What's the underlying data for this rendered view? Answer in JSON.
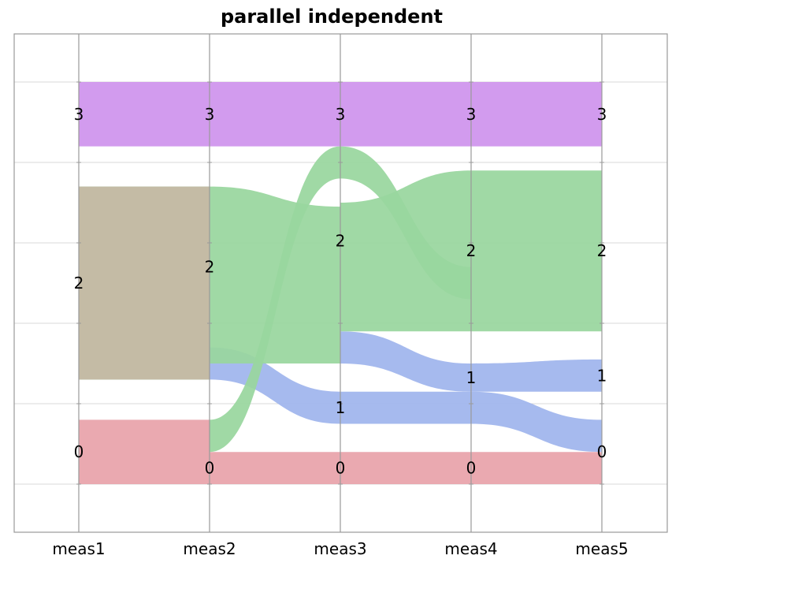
{
  "chart_data": {
    "type": "parallel-sets",
    "title": "parallel independent",
    "axes": [
      "meas1",
      "meas2",
      "meas3",
      "meas4",
      "meas5"
    ],
    "y_scale": {
      "min": 0,
      "max": 10
    },
    "grid": true,
    "colors": {
      "0": "#e8a3aa",
      "1": "#9fb5ed",
      "2": "#99d69e",
      "3": "#cf93ed",
      "2_at_meas1": "#c4bba5"
    },
    "nodes": [
      {
        "axis": 0,
        "label": "0",
        "y0": 0.0,
        "y1": 1.6
      },
      {
        "axis": 0,
        "label": "2",
        "y0": 2.6,
        "y1": 7.4
      },
      {
        "axis": 0,
        "label": "3",
        "y0": 8.4,
        "y1": 10.0
      },
      {
        "axis": 1,
        "label": "0",
        "y0": 0.0,
        "y1": 0.8
      },
      {
        "axis": 1,
        "label": "2",
        "y0": 3.4,
        "y1": 7.4
      },
      {
        "axis": 1,
        "label": "3",
        "y0": 8.4,
        "y1": 10.0
      },
      {
        "axis": 2,
        "label": "0",
        "y0": 0.0,
        "y1": 0.8
      },
      {
        "axis": 2,
        "label": "1",
        "y0": 1.5,
        "y1": 2.3
      },
      {
        "axis": 2,
        "label": "2",
        "y0": 3.7,
        "y1": 8.4
      },
      {
        "axis": 2,
        "label": "3",
        "y0": 8.4,
        "y1": 10.0
      },
      {
        "axis": 3,
        "label": "0",
        "y0": 0.0,
        "y1": 0.8
      },
      {
        "axis": 3,
        "label": "1",
        "y0": 2.3,
        "y1": 3.0
      },
      {
        "axis": 3,
        "label": "2",
        "y0": 3.8,
        "y1": 7.8
      },
      {
        "axis": 3,
        "label": "3",
        "y0": 8.4,
        "y1": 10.0
      },
      {
        "axis": 4,
        "label": "0",
        "y0": 0.0,
        "y1": 1.6
      },
      {
        "axis": 4,
        "label": "1",
        "y0": 2.3,
        "y1": 3.1
      },
      {
        "axis": 4,
        "label": "2",
        "y0": 3.8,
        "y1": 7.8
      },
      {
        "axis": 4,
        "label": "3",
        "y0": 8.4,
        "y1": 10.0
      }
    ],
    "links": [
      {
        "from_axis": 0,
        "to_axis": 1,
        "category": "0",
        "y0a": 0.0,
        "y1a": 1.6,
        "y0b": 0.0,
        "y1b": 1.6
      },
      {
        "from_axis": 0,
        "to_axis": 1,
        "category": "2",
        "y0a": 2.6,
        "y1a": 7.4,
        "y0b": 2.6,
        "y1b": 7.4
      },
      {
        "from_axis": 0,
        "to_axis": 1,
        "category": "3",
        "y0a": 8.4,
        "y1a": 10.0,
        "y0b": 8.4,
        "y1b": 10.0
      },
      {
        "from_axis": 1,
        "to_axis": 2,
        "category": "0",
        "y0a": 0.0,
        "y1a": 0.8,
        "y0b": 0.0,
        "y1b": 0.8
      },
      {
        "from_axis": 1,
        "to_axis": 2,
        "category": "1",
        "y0a": 2.6,
        "y1a": 3.4,
        "y0b": 1.5,
        "y1b": 2.3
      },
      {
        "from_axis": 1,
        "to_axis": 2,
        "category": "2",
        "y0a": 0.8,
        "y1a": 1.6,
        "y0b": 7.6,
        "y1b": 8.4
      },
      {
        "from_axis": 1,
        "to_axis": 2,
        "category": "2",
        "y0a": 3.0,
        "y1a": 7.4,
        "y0b": 3.0,
        "y1b": 6.9
      },
      {
        "from_axis": 1,
        "to_axis": 2,
        "category": "3",
        "y0a": 8.4,
        "y1a": 10.0,
        "y0b": 8.4,
        "y1b": 10.0
      },
      {
        "from_axis": 2,
        "to_axis": 3,
        "category": "0",
        "y0a": 0.0,
        "y1a": 0.8,
        "y0b": 0.0,
        "y1b": 0.8
      },
      {
        "from_axis": 2,
        "to_axis": 3,
        "category": "1",
        "y0a": 1.5,
        "y1a": 2.3,
        "y0b": 1.5,
        "y1b": 2.3
      },
      {
        "from_axis": 2,
        "to_axis": 3,
        "category": "1",
        "y0a": 3.0,
        "y1a": 3.8,
        "y0b": 2.3,
        "y1b": 3.0
      },
      {
        "from_axis": 2,
        "to_axis": 3,
        "category": "2",
        "y0a": 7.6,
        "y1a": 8.4,
        "y0b": 4.6,
        "y1b": 5.4
      },
      {
        "from_axis": 2,
        "to_axis": 3,
        "category": "2",
        "y0a": 3.8,
        "y1a": 7.0,
        "y0b": 3.8,
        "y1b": 7.8
      },
      {
        "from_axis": 2,
        "to_axis": 3,
        "category": "3",
        "y0a": 8.4,
        "y1a": 10.0,
        "y0b": 8.4,
        "y1b": 10.0
      },
      {
        "from_axis": 3,
        "to_axis": 4,
        "category": "0",
        "y0a": 0.0,
        "y1a": 0.8,
        "y0b": 0.0,
        "y1b": 0.8
      },
      {
        "from_axis": 3,
        "to_axis": 4,
        "category": "1",
        "y0a": 1.5,
        "y1a": 2.3,
        "y0b": 0.8,
        "y1b": 1.6
      },
      {
        "from_axis": 3,
        "to_axis": 4,
        "category": "1",
        "y0a": 2.3,
        "y1a": 3.0,
        "y0b": 2.3,
        "y1b": 3.1
      },
      {
        "from_axis": 3,
        "to_axis": 4,
        "category": "2",
        "y0a": 3.8,
        "y1a": 7.8,
        "y0b": 3.8,
        "y1b": 7.8
      },
      {
        "from_axis": 3,
        "to_axis": 4,
        "category": "3",
        "y0a": 8.4,
        "y1a": 10.0,
        "y0b": 8.4,
        "y1b": 10.0
      }
    ]
  }
}
